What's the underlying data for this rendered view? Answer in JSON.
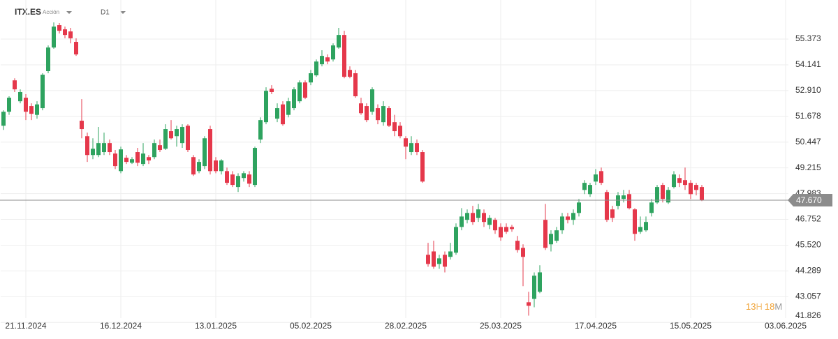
{
  "header": {
    "symbol": "ITX.ES",
    "instrument_type": "Acción",
    "timeframe": "D1"
  },
  "countdown": {
    "hours": "13",
    "hours_unit": "H",
    "minutes": "18",
    "minutes_unit": "M"
  },
  "chart_data": {
    "type": "candlestick",
    "up_color": "#2ea35f",
    "down_color": "#e5384b",
    "grid": true,
    "ylim": [
      41.5,
      57.242
    ],
    "yticks": [
      55.373,
      54.141,
      {
        "value": 52.91,
        "label": "52.910"
      },
      51.678,
      50.447,
      49.215,
      47.983,
      46.752,
      {
        "value": 45.52,
        "label": "45.520"
      },
      44.289,
      43.057,
      41.826
    ],
    "last_price": {
      "value": 47.67,
      "label": "47.670"
    },
    "categories": [
      null,
      null,
      null,
      null,
      "21.11.2024",
      null,
      null,
      null,
      null,
      null,
      null,
      null,
      null,
      null,
      null,
      null,
      null,
      null,
      null,
      null,
      null,
      "16.12.2024",
      null,
      null,
      null,
      null,
      null,
      null,
      null,
      null,
      null,
      null,
      null,
      null,
      null,
      null,
      null,
      null,
      "13.01.2025",
      null,
      null,
      null,
      null,
      null,
      null,
      null,
      null,
      null,
      null,
      null,
      null,
      null,
      null,
      null,
      null,
      "05.02.2025",
      null,
      null,
      null,
      null,
      null,
      null,
      null,
      null,
      null,
      null,
      null,
      null,
      null,
      null,
      null,
      null,
      "28.02.2025",
      null,
      null,
      null,
      null,
      null,
      null,
      null,
      null,
      null,
      null,
      null,
      null,
      null,
      null,
      null,
      null,
      "25.03.2025",
      null,
      null,
      null,
      null,
      null,
      null,
      null,
      null,
      null,
      null,
      null,
      null,
      null,
      null,
      null,
      null,
      "17.04.2025",
      null,
      null,
      null,
      null,
      null,
      null,
      null,
      null,
      null,
      null,
      null,
      null,
      null,
      null,
      null,
      null,
      "15.05.2025",
      null,
      null,
      null,
      null,
      null,
      null,
      null,
      null,
      null,
      null,
      null,
      null,
      null,
      null,
      null,
      null,
      "03.06.2025"
    ],
    "open": [
      51.23,
      51.9,
      53.4,
      52.4,
      52.57,
      52.17,
      51.75,
      52.07,
      53.84,
      54.97,
      56.04,
      55.84,
      55.74,
      55.24,
      51.47,
      50.73,
      49.83,
      49.83,
      49.97,
      50.4,
      49.9,
      49.06,
      49.7,
      49.46,
      49.97,
      49.4,
      49.73,
      49.73,
      50.3,
      50.13,
      50.97,
      50.73,
      50.4,
      51.23,
      49.73,
      49.06,
      49.3,
      51.07,
      49.57,
      49.06,
      49.06,
      48.9,
      48.3,
      48.73,
      48.9,
      48.4,
      50.57,
      51.4,
      53.0,
      51.57,
      52.25,
      51.75,
      52.07,
      52.4,
      53.3,
      53.3,
      53.64,
      54.17,
      54.5,
      54.4,
      54.97,
      55.57,
      53.9,
      53.74,
      52.3,
      52.17,
      51.9,
      52.07,
      51.4,
      52.07,
      51.4,
      51.23,
      50.63,
      49.97,
      50.4,
      49.97,
      45.06,
      45.22,
      44.62,
      45.06,
      44.96,
      45.16,
      46.39,
      46.73,
      47.06,
      46.82,
      47.06,
      46.49,
      46.73,
      46.39,
      46.39,
      46.39,
      45.73,
      45.39,
      42.79,
      42.95,
      43.29,
      46.73,
      45.56,
      45.73,
      46.23,
      46.89,
      46.73,
      47.06,
      48.16,
      47.96,
      48.56,
      49.06,
      48.06,
      47.23,
      47.4,
      47.73,
      47.96,
      47.23,
      46.16,
      46.23,
      47.06,
      47.56,
      48.4,
      47.56,
      48.3,
      48.73,
      48.63,
      48.5,
      48.4,
      48.3,
      null,
      null,
      null,
      null,
      null,
      null,
      null,
      null,
      null,
      null,
      null,
      null,
      null,
      null,
      null
    ],
    "high": [
      51.97,
      52.64,
      53.5,
      52.97,
      52.74,
      52.3,
      52.4,
      53.74,
      55.07,
      56.17,
      56.14,
      55.97,
      55.91,
      55.41,
      52.5,
      50.9,
      50.63,
      51.17,
      50.9,
      50.57,
      50.07,
      50.23,
      49.83,
      49.73,
      50.17,
      50.4,
      49.83,
      50.57,
      50.57,
      51.3,
      51.5,
      51.23,
      51.3,
      51.3,
      49.83,
      49.63,
      50.73,
      51.23,
      49.73,
      49.63,
      49.23,
      49.06,
      48.96,
      49.06,
      49.06,
      50.23,
      51.63,
      53.07,
      53.17,
      52.3,
      52.4,
      52.57,
      53.07,
      53.4,
      53.4,
      53.9,
      54.4,
      54.84,
      54.64,
      55.17,
      55.91,
      55.77,
      54.07,
      53.9,
      52.57,
      52.3,
      53.07,
      52.25,
      52.4,
      52.17,
      51.75,
      51.4,
      50.73,
      50.73,
      50.57,
      50.07,
      45.63,
      45.73,
      45.06,
      45.22,
      45.63,
      46.56,
      47.29,
      47.23,
      47.4,
      47.49,
      47.23,
      46.96,
      46.82,
      46.56,
      46.56,
      46.49,
      45.96,
      45.56,
      43.29,
      44.22,
      44.56,
      47.49,
      46.23,
      46.39,
      47.06,
      47.06,
      47.23,
      47.73,
      48.63,
      48.5,
      49.16,
      49.23,
      48.16,
      47.4,
      48.06,
      48.16,
      48.16,
      47.29,
      46.89,
      46.89,
      47.73,
      48.4,
      48.5,
      48.3,
      49.06,
      48.9,
      49.23,
      48.63,
      48.5,
      48.4,
      null,
      null,
      null,
      null,
      null,
      null,
      null,
      null,
      null,
      null,
      null,
      null,
      null,
      null,
      null
    ],
    "low": [
      51.03,
      51.75,
      52.84,
      52.3,
      51.5,
      51.5,
      51.57,
      51.97,
      53.74,
      54.91,
      55.64,
      55.41,
      55.17,
      54.57,
      50.63,
      49.5,
      49.63,
      49.73,
      49.83,
      49.83,
      49.16,
      48.96,
      49.4,
      49.4,
      49.3,
      49.3,
      49.4,
      49.63,
      49.97,
      50.07,
      50.57,
      50.23,
      50.17,
      49.97,
      48.83,
      48.96,
      49.16,
      48.9,
      48.96,
      48.9,
      48.4,
      48.3,
      48.06,
      48.56,
      48.3,
      48.3,
      50.4,
      51.3,
      52.74,
      51.4,
      51.23,
      51.63,
      51.97,
      52.3,
      52.5,
      53.17,
      53.57,
      54.07,
      54.17,
      54.3,
      54.91,
      53.5,
      53.5,
      52.57,
      51.75,
      51.4,
      51.75,
      51.3,
      51.23,
      51.17,
      50.73,
      50.63,
      49.63,
      49.83,
      49.83,
      48.5,
      44.49,
      44.39,
      44.39,
      44.22,
      44.83,
      45.06,
      46.23,
      46.56,
      46.49,
      46.63,
      46.39,
      46.29,
      46.06,
      45.73,
      46.06,
      46.16,
      45.16,
      43.56,
      42.15,
      42.55,
      43.22,
      45.29,
      45.22,
      45.63,
      46.06,
      46.56,
      46.49,
      46.89,
      47.96,
      47.83,
      48.4,
      48.4,
      46.63,
      46.63,
      47.23,
      47.56,
      47.23,
      45.73,
      46.06,
      46.16,
      46.89,
      47.49,
      47.56,
      47.49,
      48.23,
      48.3,
      48.16,
      47.73,
      47.9,
      47.63,
      null,
      null,
      null,
      null,
      null,
      null,
      null,
      null,
      null,
      null,
      null,
      null,
      null,
      null,
      null
    ],
    "close": [
      51.9,
      52.57,
      52.97,
      52.84,
      51.9,
      51.8,
      52.25,
      53.67,
      54.97,
      55.97,
      55.77,
      55.57,
      55.41,
      54.64,
      51.07,
      49.83,
      50.13,
      50.4,
      50.4,
      49.97,
      49.3,
      50.1,
      49.5,
      49.63,
      49.46,
      49.9,
      49.57,
      50.4,
      50.07,
      51.07,
      50.63,
      51.07,
      51.17,
      50.07,
      48.9,
      49.5,
      50.63,
      49.06,
      49.06,
      49.57,
      48.5,
      48.4,
      48.83,
      48.96,
      48.46,
      50.17,
      51.5,
      52.9,
      52.84,
      52.07,
      51.3,
      52.4,
      52.97,
      53.3,
      52.57,
      53.74,
      54.3,
      54.57,
      54.3,
      55.07,
      55.57,
      53.57,
      53.57,
      52.64,
      51.83,
      51.5,
      52.97,
      51.5,
      52.17,
      51.23,
      50.97,
      50.73,
      50.23,
      50.4,
      49.97,
      48.56,
      44.62,
      44.49,
      44.89,
      44.49,
      45.22,
      46.39,
      46.89,
      47.06,
      46.63,
      47.23,
      46.63,
      46.82,
      46.23,
      45.89,
      46.16,
      46.29,
      45.29,
      44.96,
      42.62,
      44.06,
      44.22,
      45.39,
      46.06,
      46.23,
      46.89,
      46.73,
      47.06,
      47.56,
      48.5,
      48.4,
      48.9,
      48.5,
      46.73,
      46.82,
      47.9,
      47.9,
      47.29,
      46.06,
      46.39,
      46.63,
      47.56,
      48.3,
      47.73,
      48.16,
      48.9,
      48.5,
      48.4,
      47.96,
      48.16,
      47.67,
      null,
      null,
      null,
      null,
      null,
      null,
      null,
      null,
      null,
      null,
      null,
      null,
      null,
      null,
      null
    ]
  }
}
